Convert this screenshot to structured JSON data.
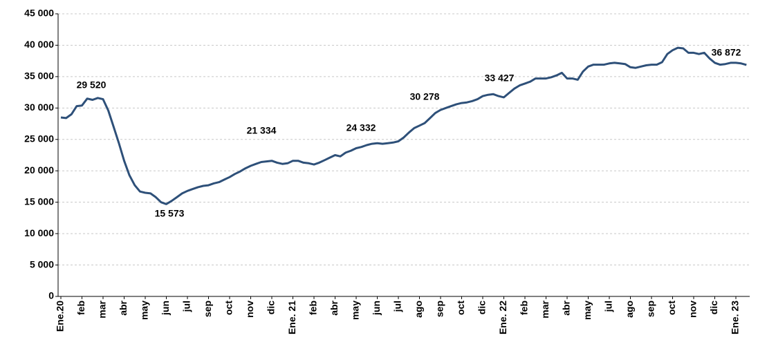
{
  "chart_data": {
    "type": "line",
    "categories": [
      "Ene.20",
      null,
      null,
      null,
      "feb",
      null,
      null,
      null,
      "mar",
      null,
      null,
      null,
      "abr",
      null,
      null,
      null,
      "may",
      null,
      null,
      null,
      "jun",
      null,
      null,
      null,
      "jul",
      null,
      null,
      null,
      "sep",
      null,
      null,
      null,
      "oct",
      null,
      null,
      null,
      "nov",
      null,
      null,
      null,
      "dic",
      null,
      null,
      null,
      "Ene. 21",
      null,
      null,
      null,
      "feb",
      null,
      null,
      null,
      "abr",
      null,
      null,
      null,
      "may",
      null,
      null,
      null,
      "jun",
      null,
      null,
      null,
      "jul",
      null,
      null,
      null,
      "ago",
      null,
      null,
      null,
      "sep",
      null,
      null,
      null,
      "oct",
      null,
      null,
      null,
      "dic",
      null,
      null,
      null,
      "Ene. 22",
      null,
      null,
      null,
      "feb",
      null,
      null,
      null,
      "mar",
      null,
      null,
      null,
      "abr",
      null,
      null,
      null,
      "may",
      null,
      null,
      null,
      "jul",
      null,
      null,
      null,
      "ago",
      null,
      null,
      null,
      "sep",
      null,
      null,
      null,
      "oct",
      null,
      null,
      null,
      "nov",
      null,
      null,
      null,
      "dic",
      null,
      null,
      null,
      "Ene. 23",
      null,
      null
    ],
    "values": [
      28500,
      28400,
      29000,
      30300,
      30400,
      31500,
      31300,
      31600,
      31400,
      29600,
      27000,
      24400,
      21600,
      19300,
      17700,
      16700,
      16500,
      16400,
      15800,
      15000,
      14700,
      15200,
      15800,
      16400,
      16800,
      17100,
      17400,
      17600,
      17700,
      18000,
      18200,
      18600,
      19000,
      19500,
      19900,
      20400,
      20800,
      21100,
      21400,
      21500,
      21600,
      21300,
      21100,
      21200,
      21600,
      21600,
      21300,
      21200,
      21000,
      21300,
      21700,
      22100,
      22500,
      22300,
      22900,
      23200,
      23600,
      23800,
      24100,
      24300,
      24400,
      24300,
      24400,
      24500,
      24700,
      25300,
      26100,
      26800,
      27200,
      27600,
      28400,
      29200,
      29700,
      30000,
      30300,
      30600,
      30800,
      30900,
      31100,
      31400,
      31900,
      32100,
      32200,
      31900,
      31700,
      32400,
      33100,
      33600,
      33900,
      34200,
      34700,
      34700,
      34700,
      34900,
      35200,
      35600,
      34700,
      34700,
      34500,
      35800,
      36600,
      36900,
      36900,
      36900,
      37100,
      37200,
      37100,
      37000,
      36500,
      36400,
      36600,
      36800,
      36900,
      36900,
      37300,
      38600,
      39200,
      39600,
      39500,
      38800,
      38800,
      38600,
      38800,
      37900,
      37200,
      36900,
      37000,
      37200,
      37200,
      37100,
      36872
    ],
    "color": "#2e5079",
    "annotations": [
      "29 520",
      "15 573",
      "21 334",
      "24 332",
      "30 278",
      "33 427",
      "36 872"
    ],
    "ylim": [
      0,
      45000
    ],
    "yticks": [
      0,
      {
        "value": 5000,
        "label": "5 000"
      },
      {
        "value": 10000,
        "label": "10 000"
      },
      {
        "value": 15000,
        "label": "15 000"
      },
      {
        "value": 20000,
        "label": "20 000"
      },
      {
        "value": 25000,
        "label": "25 000"
      },
      {
        "value": 30000,
        "label": "30 000"
      },
      {
        "value": 35000,
        "label": "35 000"
      },
      {
        "value": 40000,
        "label": "40 000"
      },
      {
        "value": 45000,
        "label": "45 000"
      }
    ],
    "grid": true
  }
}
